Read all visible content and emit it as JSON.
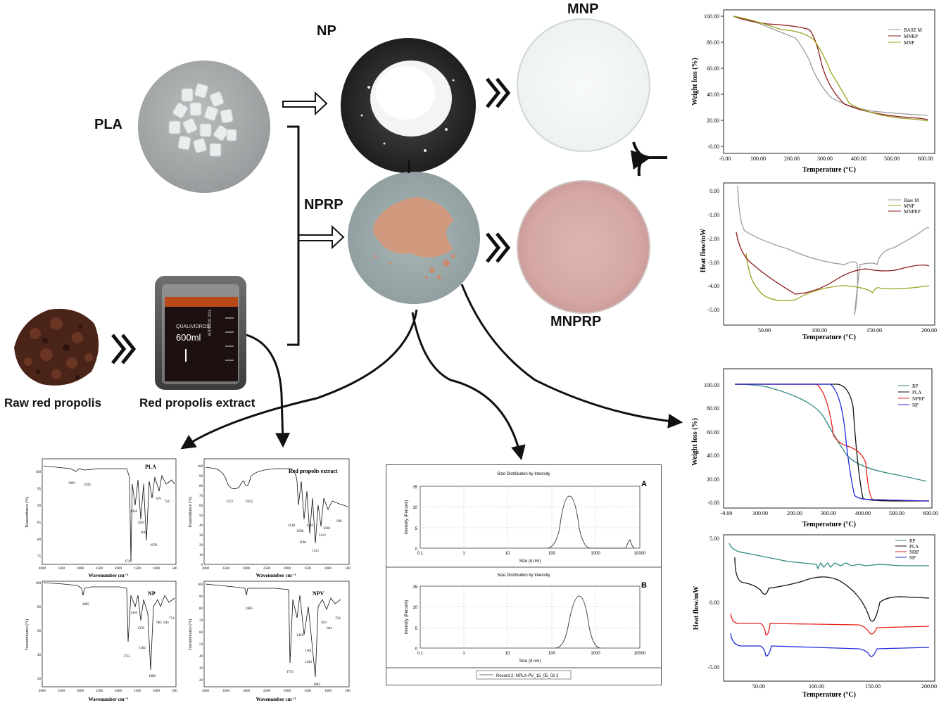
{
  "labels": {
    "pla": "PLA",
    "np": "NP",
    "mnp": "MNP",
    "nprp": "NPRP",
    "mnprp": "MNPRP",
    "raw": "Raw red propolis",
    "extract": "Red propolis  extract",
    "beaker_brand": "QUALIVIDROS",
    "beaker_volume": "600ml",
    "beaker_side": "APPROX VOL"
  },
  "colors": {
    "gray": "#9a9a9a",
    "darkred": "#8b1a1a",
    "olive": "#9aa21a",
    "teal": "#2e8b82",
    "black": "#111111",
    "red": "#e8201c",
    "blue": "#1f2bd8",
    "petri_pink": "#d4a7a4",
    "powder_pink": "#d49a80"
  },
  "tga_top": {
    "ylabel": "Weight loss (%)",
    "xlabel": "Temperature (°C)",
    "xticks": [
      "-0.00",
      "100.00",
      "200.00",
      "300.00",
      "400.00",
      "500.00",
      "600.00"
    ],
    "yticks": [
      "100.00",
      "80.00",
      "60.00",
      "40.00",
      "20.00",
      "-0.00"
    ],
    "legend": [
      "BASE M",
      "MNRP",
      "MNP"
    ]
  },
  "dsc_top": {
    "ylabel": "Heat flow/mW",
    "xlabel": "Temperature (°C)",
    "xticks": [
      "50.00",
      "100.00",
      "150.00",
      "200.00"
    ],
    "yticks": [
      "0.00",
      "-1.00",
      "-2.00",
      "-3.00",
      "-4.00",
      "-5.00"
    ],
    "legend": [
      "Base M",
      "MNP",
      "MNPRP"
    ]
  },
  "tga_bottom": {
    "ylabel": "Weight loss (%)",
    "xlabel": "Temperature (°C)",
    "xticks": [
      "-0.00",
      "100.00",
      "200.00",
      "300.00",
      "400.00",
      "500.00",
      "600.00"
    ],
    "yticks": [
      "100.00",
      "80.00",
      "60.00",
      "40.00",
      "20.00",
      "-0.00"
    ],
    "legend": [
      "RP",
      "PLA",
      "NPRP",
      "NP"
    ]
  },
  "dsc_bottom": {
    "ylabel": "Heat flow/mW",
    "xlabel": "Temperature (°C)",
    "xticks": [
      "50.00",
      "100.00",
      "150.00",
      "200.00"
    ],
    "yticks": [
      "5.00",
      "0.00",
      "-5.00"
    ],
    "legend": [
      "RP",
      "PLA",
      "NRP",
      "NP"
    ]
  },
  "ftir": {
    "xlabel": "Wavenumber cm⁻¹",
    "ylabel": "Transmittance (%)",
    "xticks": [
      "4000",
      "3500",
      "3000",
      "2500",
      "2000",
      "1500",
      "1000",
      "500"
    ],
    "pla": {
      "title": "PLA",
      "yticks": [
        "100",
        "95",
        "90",
        "85",
        "80",
        "75"
      ],
      "peaks": [
        "2995",
        "2945",
        "1456",
        "1363",
        "1184",
        "1747",
        "1078",
        "871",
        "754"
      ]
    },
    "rpe": {
      "title": "Red propolis extract",
      "yticks": [
        "100",
        "90",
        "80",
        "70",
        "60",
        "50",
        "40",
        "30",
        "20",
        "10",
        "0"
      ],
      "peaks": [
        "3372",
        "2932",
        "1618",
        "1508",
        "1446",
        "1198",
        "1155",
        "1112",
        "1030",
        "836"
      ]
    },
    "np": {
      "title": "NP",
      "yticks": [
        "100",
        "80",
        "60",
        "40",
        "20"
      ],
      "peaks": [
        "2885",
        "1456",
        "1359",
        "1182",
        "1755",
        "1086",
        "962",
        "844",
        "754"
      ]
    },
    "npv": {
      "title": "NPV",
      "yticks": [
        "100",
        "90",
        "80",
        "70",
        "60",
        "50",
        "40",
        "30",
        "20"
      ],
      "peaks": [
        "2885",
        "1456",
        "1361",
        "1104",
        "1755",
        "1083",
        "959",
        "844",
        "754"
      ]
    }
  },
  "dls": {
    "title": "Size Distribution by Intensity",
    "ylabel": "Intensity (Percent)",
    "xlabel": "Size (d.nm)",
    "xticks": [
      "0.1",
      "1",
      "10",
      "100",
      "1000",
      "10000"
    ],
    "yticks": [
      "15",
      "10",
      "5",
      "0"
    ],
    "panel_a": "A",
    "panel_b": "B",
    "legend": "Record 2: NPLA-PV_15_05_02 2"
  }
}
